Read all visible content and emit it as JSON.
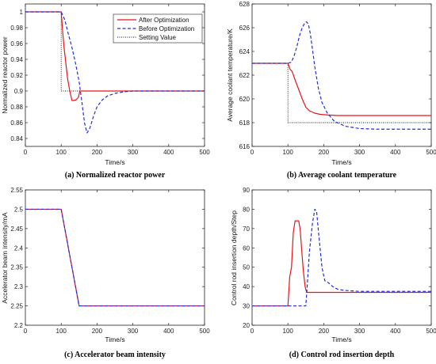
{
  "legend_entries": [
    "After Optimization",
    "Before Optimization",
    "Setting Value"
  ],
  "series_colors": {
    "After Optimization": "#e8141b",
    "Before Optimization": "#1f2ee0",
    "Setting Value": "#111111"
  },
  "chart_data": [
    {
      "type": "line",
      "panel": "a",
      "caption": "(a) Normalized reactor power",
      "xlabel": "Time/s",
      "ylabel": "Normalized reactor power",
      "xlim": [
        0,
        500
      ],
      "ylim": [
        0.83,
        1.01
      ],
      "xticks": [
        "0",
        "100",
        "200",
        "300",
        "400",
        "500"
      ],
      "yticks": [
        "0.84",
        "0.86",
        "0.88",
        "0.9",
        "0.92",
        "0.94",
        "0.96",
        "0.98",
        "1"
      ],
      "ytick_values": [
        0.84,
        0.86,
        0.88,
        0.9,
        0.92,
        0.94,
        0.96,
        0.98,
        1.0
      ],
      "legend_placement": "top-right",
      "series": [
        {
          "name": "After Optimization",
          "style": "solid",
          "x": [
            0,
            100,
            104,
            108,
            113,
            118,
            124,
            130,
            136,
            142,
            148,
            152,
            156,
            500
          ],
          "y": [
            1.0,
            1.0,
            0.975,
            0.955,
            0.935,
            0.915,
            0.9,
            0.888,
            0.888,
            0.889,
            0.892,
            0.9,
            0.9,
            0.9
          ]
        },
        {
          "name": "Before Optimization",
          "style": "dashed",
          "x": [
            0,
            100,
            110,
            120,
            130,
            140,
            150,
            158,
            165,
            172,
            180,
            190,
            200,
            215,
            230,
            250,
            275,
            300,
            500
          ],
          "y": [
            1.0,
            1.0,
            0.99,
            0.972,
            0.955,
            0.935,
            0.912,
            0.885,
            0.86,
            0.847,
            0.853,
            0.868,
            0.88,
            0.889,
            0.894,
            0.897,
            0.899,
            0.9,
            0.9
          ]
        },
        {
          "name": "Setting Value",
          "style": "dotted",
          "x": [
            0,
            100,
            100,
            500
          ],
          "y": [
            1.0,
            1.0,
            0.9,
            0.9
          ]
        }
      ]
    },
    {
      "type": "line",
      "panel": "b",
      "caption": "(b) Average coolant temperature",
      "xlabel": "Time/s",
      "ylabel": "Average coolant temperature/K",
      "xlim": [
        0,
        500
      ],
      "ylim": [
        616,
        628
      ],
      "xticks": [
        "0",
        "100",
        "200",
        "300",
        "400",
        "500"
      ],
      "yticks": [
        "616",
        "618",
        "620",
        "622",
        "624",
        "626",
        "628"
      ],
      "ytick_values": [
        616,
        618,
        620,
        622,
        624,
        626,
        628
      ],
      "series": [
        {
          "name": "After Optimization",
          "style": "solid",
          "x": [
            0,
            100,
            106,
            112,
            120,
            130,
            140,
            150,
            160,
            175,
            190,
            210,
            240,
            300,
            500
          ],
          "y": [
            623,
            623,
            622.5,
            622.3,
            621.6,
            620.8,
            620.0,
            619.3,
            619.0,
            618.8,
            618.7,
            618.65,
            618.6,
            618.6,
            618.6
          ]
        },
        {
          "name": "Before Optimization",
          "style": "dashed",
          "x": [
            0,
            100,
            110,
            118,
            125,
            132,
            140,
            147,
            152,
            157,
            162,
            168,
            175,
            185,
            195,
            210,
            230,
            260,
            300,
            350,
            500
          ],
          "y": [
            623,
            623,
            623.1,
            623.7,
            624.4,
            625.3,
            626.0,
            626.4,
            626.5,
            626.3,
            625.6,
            624.3,
            622.7,
            620.9,
            619.7,
            618.8,
            618.1,
            617.7,
            617.5,
            617.45,
            617.45
          ]
        },
        {
          "name": "Setting Value",
          "style": "dotted",
          "x": [
            0,
            100,
            100,
            500
          ],
          "y": [
            623,
            623,
            618,
            618
          ]
        }
      ]
    },
    {
      "type": "line",
      "panel": "c",
      "caption": "(c) Accelerator beam intensity",
      "xlabel": "Time/s",
      "ylabel": "Accelerator beam intensity/mA",
      "xlim": [
        0,
        500
      ],
      "ylim": [
        2.2,
        2.55
      ],
      "xticks": [
        "0",
        "100",
        "200",
        "300",
        "400",
        "500"
      ],
      "yticks": [
        "2.2",
        "2.25",
        "2.3",
        "2.35",
        "2.4",
        "2.45",
        "2.5",
        "2.55"
      ],
      "ytick_values": [
        2.2,
        2.25,
        2.3,
        2.35,
        2.4,
        2.45,
        2.5,
        2.55
      ],
      "series": [
        {
          "name": "After Optimization",
          "style": "solid",
          "x": [
            0,
            100,
            150,
            500
          ],
          "y": [
            2.5,
            2.5,
            2.25,
            2.25
          ]
        },
        {
          "name": "Before Optimization",
          "style": "dashed",
          "x": [
            0,
            100,
            150,
            500
          ],
          "y": [
            2.5,
            2.5,
            2.25,
            2.25
          ]
        }
      ]
    },
    {
      "type": "line",
      "panel": "d",
      "caption": "(d) Control rod insertion depth",
      "xlabel": "Time/s",
      "ylabel": "Control rod insertion depth/Step",
      "xlim": [
        0,
        500
      ],
      "ylim": [
        20,
        90
      ],
      "xticks": [
        "0",
        "100",
        "200",
        "300",
        "400",
        "500"
      ],
      "yticks": [
        "20",
        "30",
        "40",
        "50",
        "60",
        "70",
        "80",
        "90"
      ],
      "ytick_values": [
        20,
        30,
        40,
        50,
        60,
        70,
        80,
        90
      ],
      "series": [
        {
          "name": "After Optimization",
          "style": "solid",
          "x": [
            0,
            100,
            105,
            110,
            115,
            120,
            130,
            134,
            138,
            143,
            148,
            152,
            155,
            500
          ],
          "y": [
            30,
            30,
            45,
            50,
            68,
            74,
            74,
            70,
            60,
            48,
            40,
            37,
            37,
            37
          ]
        },
        {
          "name": "Before Optimization",
          "style": "dashed",
          "x": [
            0,
            100,
            150,
            153,
            160,
            168,
            175,
            180,
            187,
            195,
            203,
            213,
            225,
            240,
            260,
            300,
            500
          ],
          "y": [
            30,
            30,
            30,
            38,
            58,
            72,
            80,
            79,
            65,
            50,
            43,
            42,
            40,
            38.5,
            38,
            37.5,
            37.5
          ]
        }
      ]
    }
  ]
}
